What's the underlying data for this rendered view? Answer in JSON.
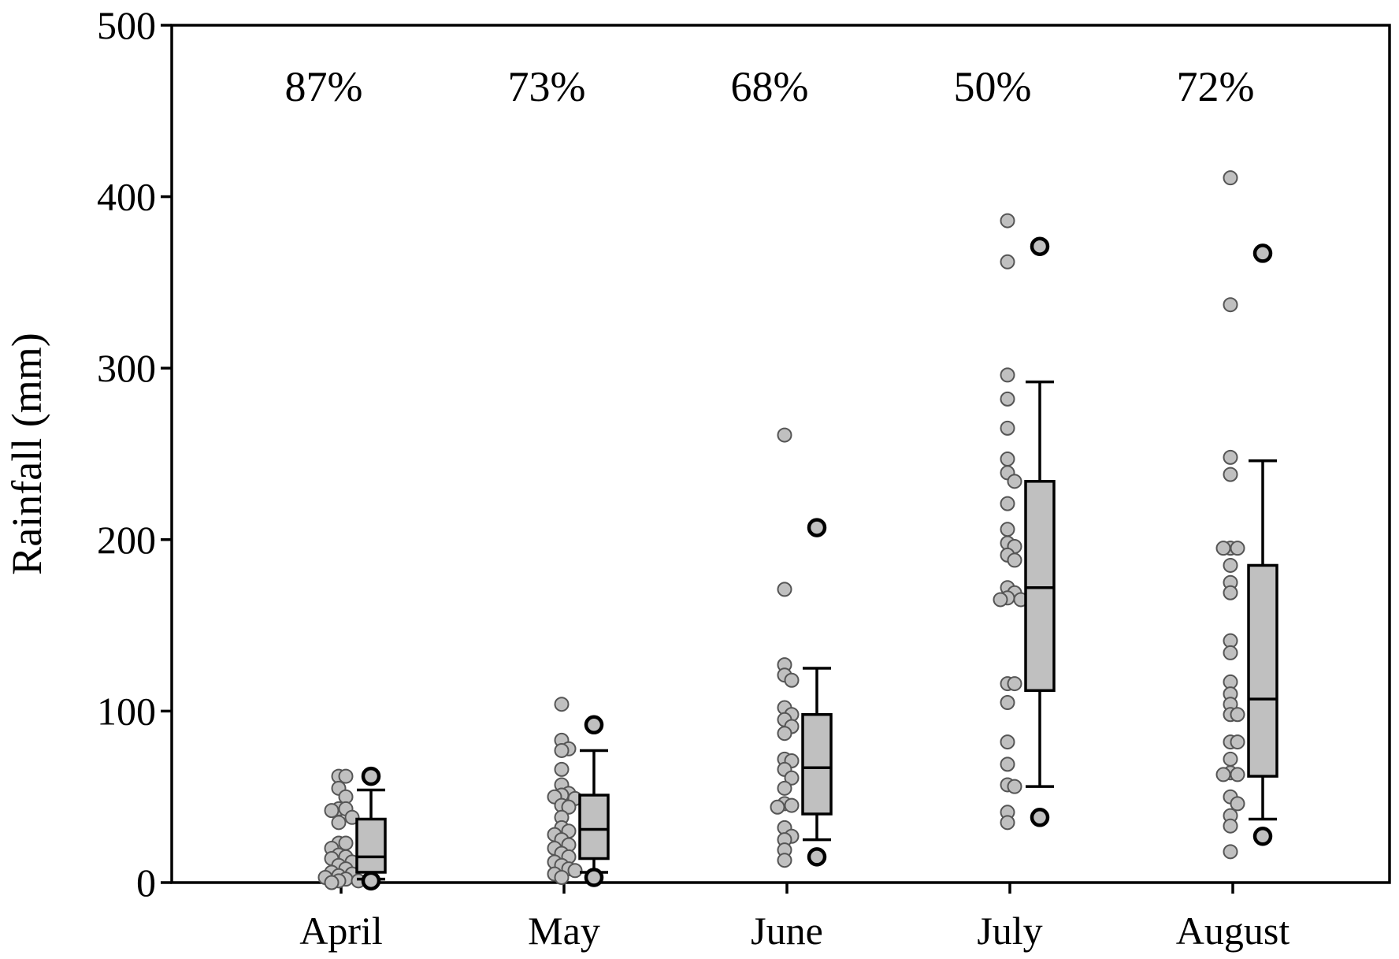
{
  "chart_data": {
    "type": "box",
    "title": "",
    "xlabel": "",
    "ylabel": "Rainfall (mm)",
    "ylim": [
      0,
      500
    ],
    "yticks": [
      0,
      100,
      200,
      300,
      400,
      500
    ],
    "grid": false,
    "categories": [
      "April",
      "May",
      "June",
      "July",
      "August"
    ],
    "annotations": [
      "87%",
      "73%",
      "68%",
      "50%",
      "72%"
    ],
    "series": [
      {
        "category": "April",
        "points": [
          62,
          62,
          55,
          50,
          43,
          43,
          42,
          38,
          35,
          23,
          23,
          20,
          16,
          15,
          14,
          12,
          10,
          8,
          6,
          5,
          4,
          3,
          2,
          1,
          1,
          0
        ],
        "box": {
          "q1": 6,
          "median": 15,
          "q3": 37,
          "whisker_low": 2,
          "whisker_high": 54
        },
        "outliers": [
          62,
          1
        ]
      },
      {
        "category": "May",
        "points": [
          104,
          83,
          78,
          77,
          66,
          57,
          52,
          51,
          50,
          49,
          45,
          44,
          38,
          32,
          30,
          28,
          25,
          22,
          20,
          17,
          15,
          12,
          10,
          8,
          7,
          5,
          3
        ],
        "box": {
          "q1": 14,
          "median": 31,
          "q3": 51,
          "whisker_low": 6,
          "whisker_high": 77
        },
        "outliers": [
          92,
          3
        ]
      },
      {
        "category": "June",
        "points": [
          261,
          171,
          127,
          121,
          118,
          102,
          98,
          95,
          91,
          87,
          72,
          71,
          66,
          61,
          55,
          46,
          45,
          44,
          32,
          27,
          25,
          19,
          13
        ],
        "box": {
          "q1": 40,
          "median": 67,
          "q3": 98,
          "whisker_low": 25,
          "whisker_high": 125
        },
        "outliers": [
          207,
          15
        ]
      },
      {
        "category": "July",
        "points": [
          386,
          362,
          296,
          282,
          265,
          247,
          239,
          234,
          221,
          206,
          198,
          196,
          191,
          188,
          172,
          169,
          166,
          165,
          165,
          116,
          116,
          105,
          82,
          69,
          57,
          56,
          41,
          35
        ],
        "box": {
          "q1": 112,
          "median": 172,
          "q3": 234,
          "whisker_low": 56,
          "whisker_high": 292
        },
        "outliers": [
          371,
          38
        ]
      },
      {
        "category": "August",
        "points": [
          411,
          337,
          248,
          238,
          195,
          195,
          195,
          185,
          175,
          169,
          141,
          134,
          117,
          110,
          104,
          98,
          98,
          82,
          82,
          72,
          64,
          63,
          63,
          50,
          46,
          39,
          33,
          18
        ],
        "box": {
          "q1": 62,
          "median": 107,
          "q3": 185,
          "whisker_low": 37,
          "whisker_high": 246
        },
        "outliers": [
          367,
          27
        ]
      }
    ]
  }
}
